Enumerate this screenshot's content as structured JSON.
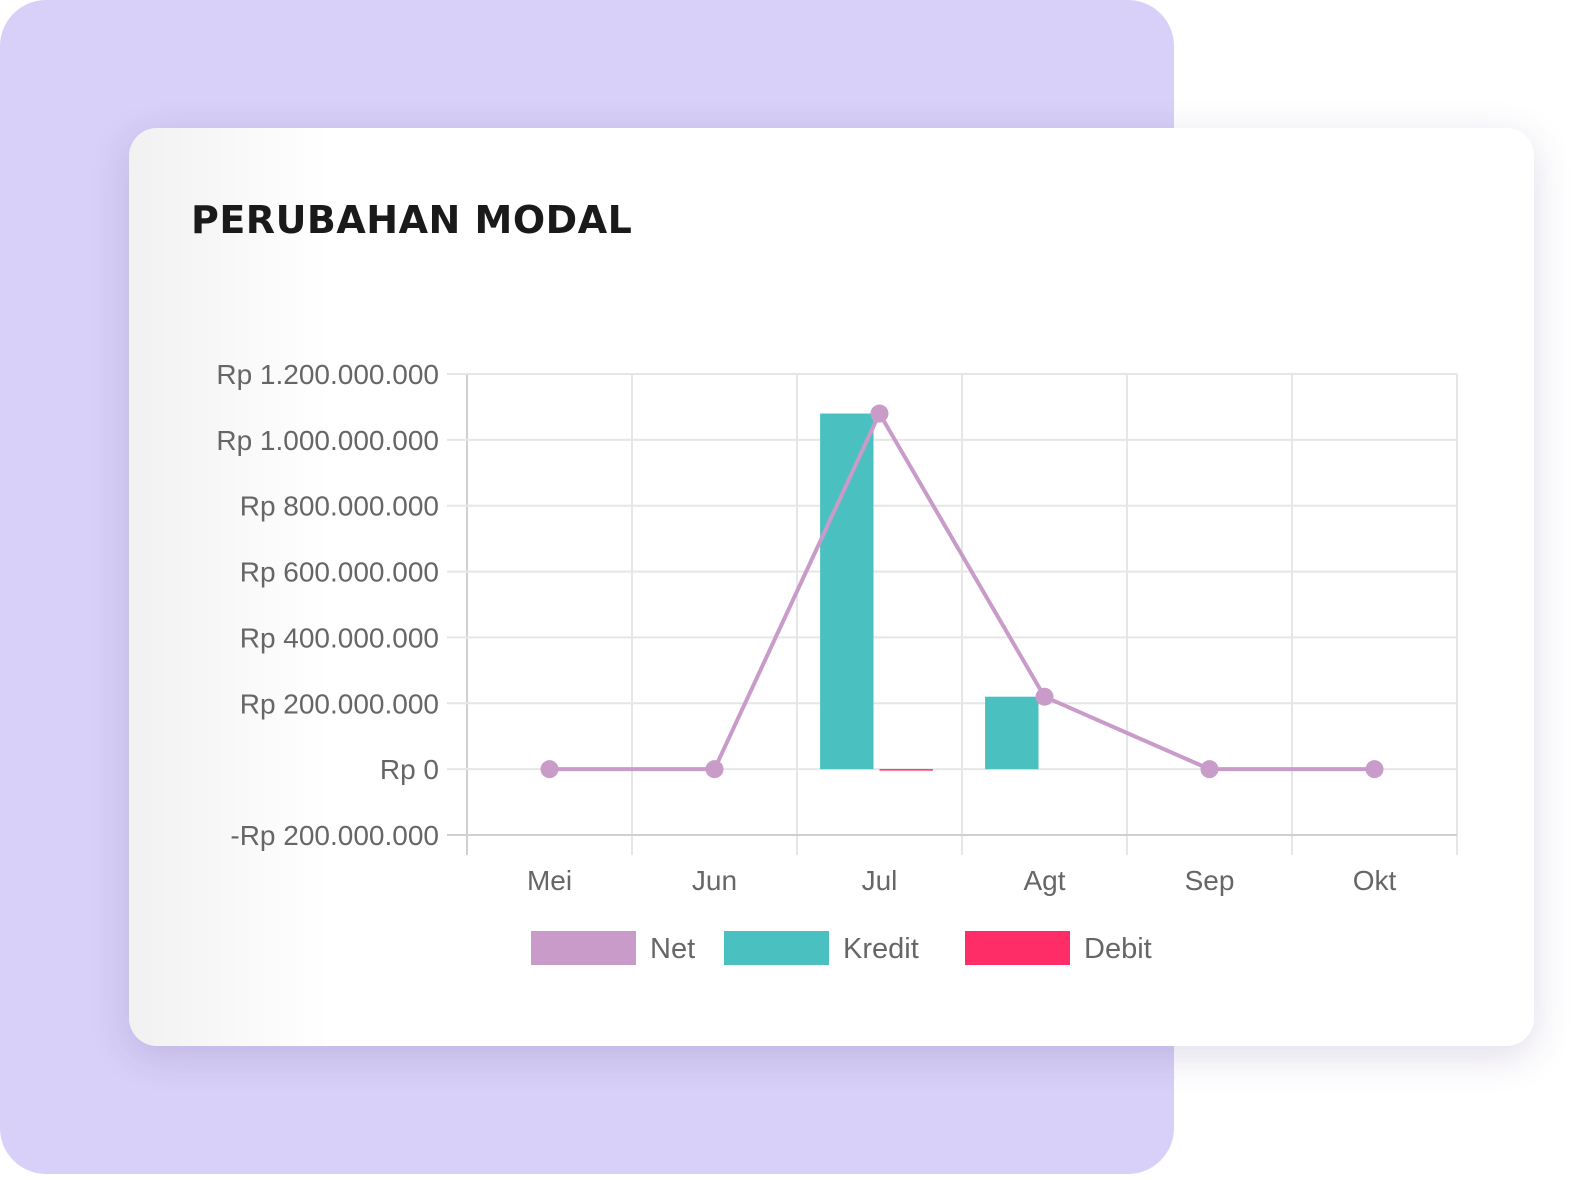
{
  "title": "PERUBAHAN MODAL",
  "chart_data": {
    "type": "bar",
    "categories": [
      "Mei",
      "Jun",
      "Jul",
      "Agt",
      "Sep",
      "Okt"
    ],
    "series": [
      {
        "name": "Net",
        "type": "line",
        "color": "#c99bc9",
        "values": [
          0,
          0,
          1080000000,
          220000000,
          0,
          0
        ]
      },
      {
        "name": "Kredit",
        "type": "bar",
        "color": "#4bc0c0",
        "values": [
          0,
          0,
          1080000000,
          220000000,
          0,
          0
        ]
      },
      {
        "name": "Debit",
        "type": "bar",
        "color": "#ff2d67",
        "values": [
          0,
          0,
          -3000000,
          0,
          0,
          0
        ]
      }
    ],
    "ylim": [
      -200000000,
      1200000000
    ],
    "yticks": [
      1200000000,
      1000000000,
      800000000,
      600000000,
      400000000,
      200000000,
      0,
      -200000000
    ],
    "ytick_labels": [
      "Rp 1.200.000.000",
      "Rp 1.000.000.000",
      "Rp 800.000.000",
      "Rp 600.000.000",
      "Rp 400.000.000",
      "Rp 200.000.000",
      "Rp 0",
      "-Rp 200.000.000"
    ],
    "grid": true,
    "legend_position": "bottom",
    "xlabel": "",
    "ylabel": ""
  }
}
